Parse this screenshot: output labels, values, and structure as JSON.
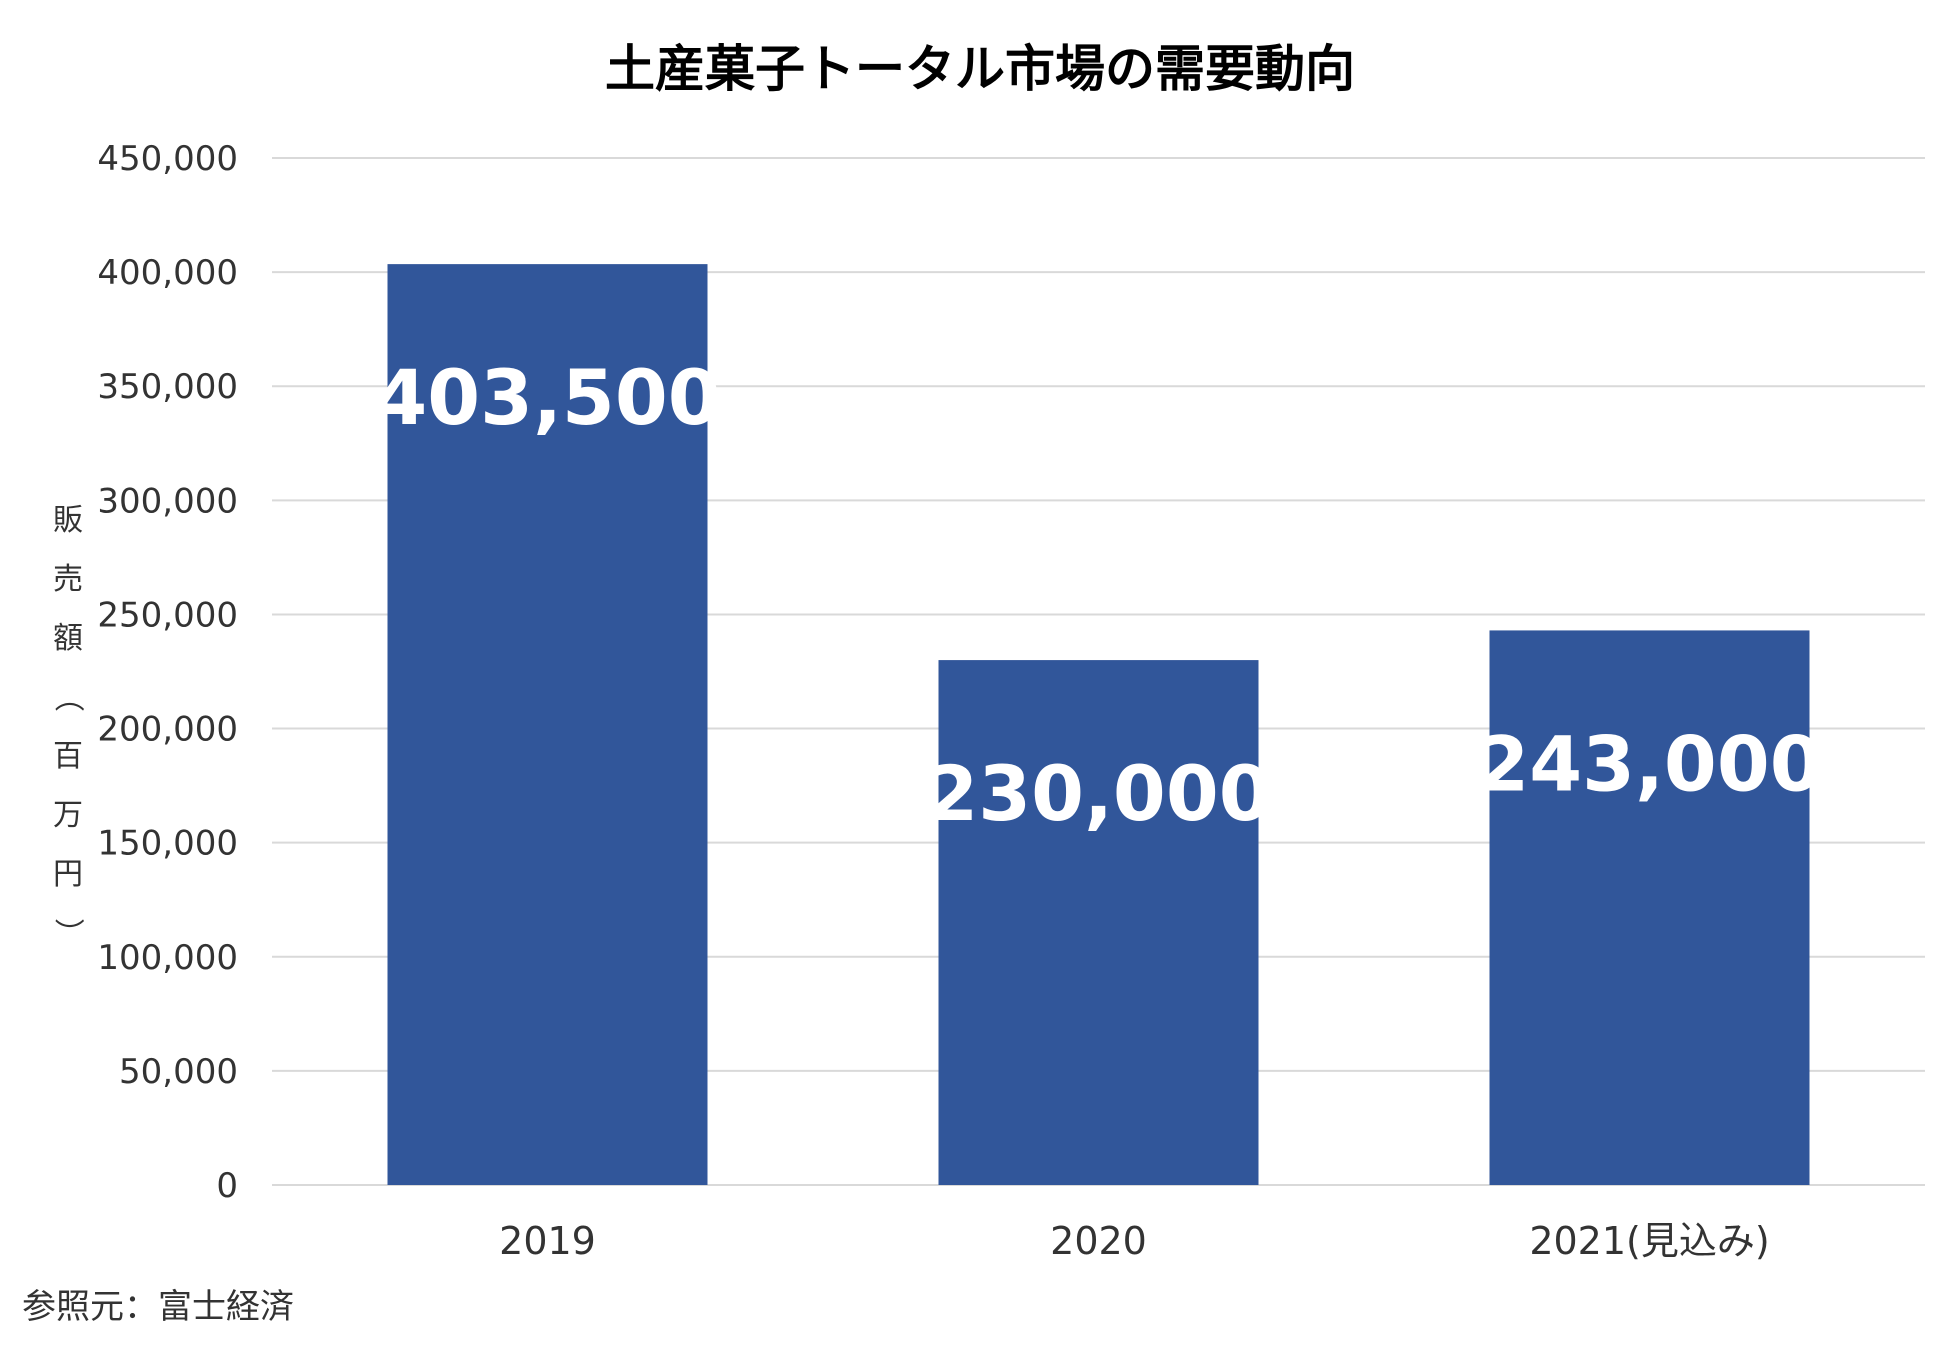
{
  "chart_data": {
    "type": "bar",
    "title": "土産菓子トータル市場の需要動向",
    "ylabel": "販売額（百万円）",
    "xlabel": "",
    "categories": [
      "2019",
      "2020",
      "2021(見込み)"
    ],
    "values": [
      403500,
      230000,
      243000
    ],
    "data_labels": [
      "403,500",
      "230,000",
      "243,000"
    ],
    "ylim": [
      0,
      450000
    ],
    "yticks": [
      0,
      50000,
      100000,
      150000,
      200000,
      250000,
      300000,
      350000,
      400000,
      450000
    ],
    "ytick_labels": [
      "0",
      "50,000",
      "100,000",
      "150,000",
      "200,000",
      "250,000",
      "300,000",
      "350,000",
      "400,000",
      "450,000"
    ],
    "grid": true,
    "legend": "none",
    "bar_color": "#31569A",
    "source_note": "参照元：富士経済"
  }
}
